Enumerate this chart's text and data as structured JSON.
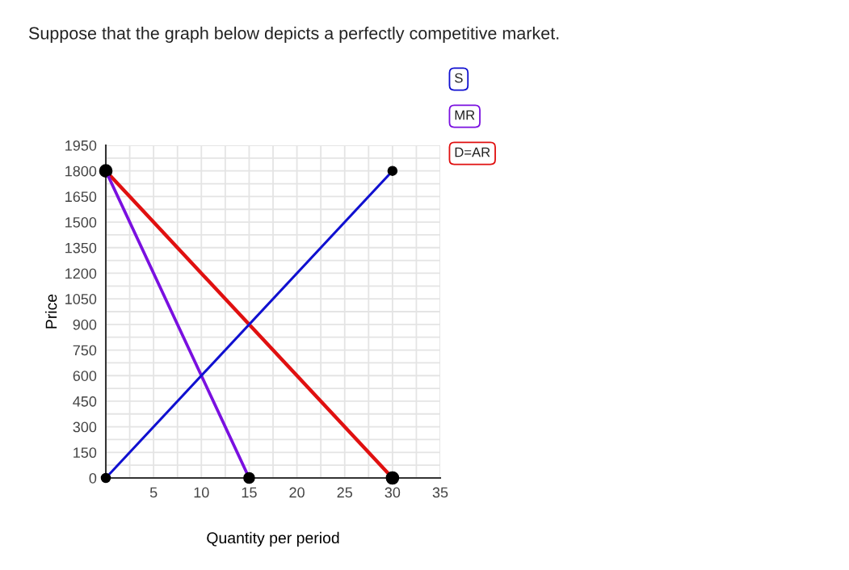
{
  "chart_data": {
    "type": "line",
    "title": "Suppose that the graph below depicts a perfectly competitive market.",
    "xlabel": "Quantity per period",
    "ylabel": "Price",
    "series": [
      {
        "name": "S",
        "color": "#1010d0",
        "x": [
          0,
          30
        ],
        "values": [
          0,
          1800
        ]
      },
      {
        "name": "MR",
        "color": "#7a10e0",
        "x": [
          0,
          15
        ],
        "values": [
          1800,
          0
        ]
      },
      {
        "name": "D=AR",
        "color": "#e01010",
        "x": [
          0,
          30
        ],
        "values": [
          1800,
          0
        ]
      }
    ],
    "xlim": [
      0,
      35
    ],
    "xticks": [
      {
        "value": 0,
        "label": null
      },
      5,
      10,
      15,
      20,
      25,
      30,
      35
    ],
    "ylim": [
      0,
      1950
    ],
    "yticks": [
      0,
      150,
      300,
      450,
      600,
      750,
      900,
      1050,
      1200,
      1350,
      1500,
      1650,
      1800,
      1950
    ],
    "grid": true,
    "legend": "top right",
    "marker": "circle",
    "line_style": "solid"
  }
}
